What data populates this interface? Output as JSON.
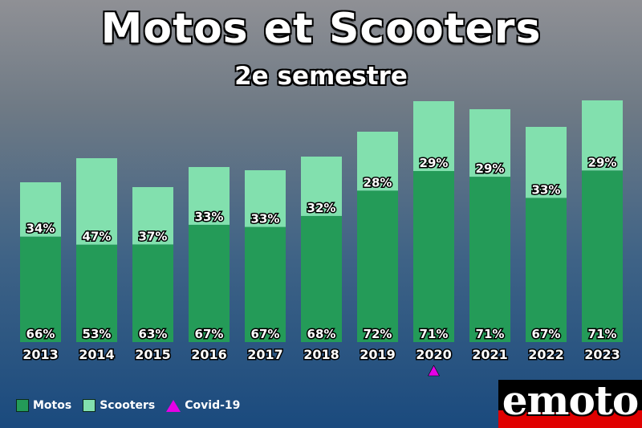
{
  "chart_data": {
    "type": "bar",
    "title": "Motos et Scooters",
    "subtitle": "2e semestre",
    "categories": [
      "2013",
      "2014",
      "2015",
      "2016",
      "2017",
      "2018",
      "2019",
      "2020",
      "2021",
      "2022",
      "2023"
    ],
    "totals_relative": [
      199,
      229,
      193,
      218,
      214,
      231,
      262,
      300,
      290,
      268,
      301
    ],
    "series": [
      {
        "name": "Motos",
        "color": "#249b58",
        "values": [
          66,
          53,
          63,
          67,
          67,
          68,
          72,
          71,
          71,
          67,
          71
        ],
        "labels": [
          "66%",
          "53%",
          "63%",
          "67%",
          "67%",
          "68%",
          "72%",
          "71%",
          "71%",
          "67%",
          "71%"
        ]
      },
      {
        "name": "Scooters",
        "color": "#82e0ae",
        "values": [
          34,
          47,
          37,
          33,
          33,
          32,
          28,
          29,
          29,
          33,
          29
        ],
        "labels": [
          "34%",
          "47%",
          "37%",
          "33%",
          "33%",
          "32%",
          "28%",
          "29%",
          "29%",
          "33%",
          "29%"
        ]
      }
    ],
    "annotations": [
      {
        "label": "Covid-19",
        "category": "2020",
        "marker": "triangle",
        "color": "#e600e6"
      }
    ],
    "stacked": true,
    "legend_position": "bottom-left",
    "grid": false
  },
  "legend": {
    "motos": "Motos",
    "scooters": "Scooters",
    "covid": "Covid-19"
  },
  "logo": {
    "text": "emoto"
  }
}
